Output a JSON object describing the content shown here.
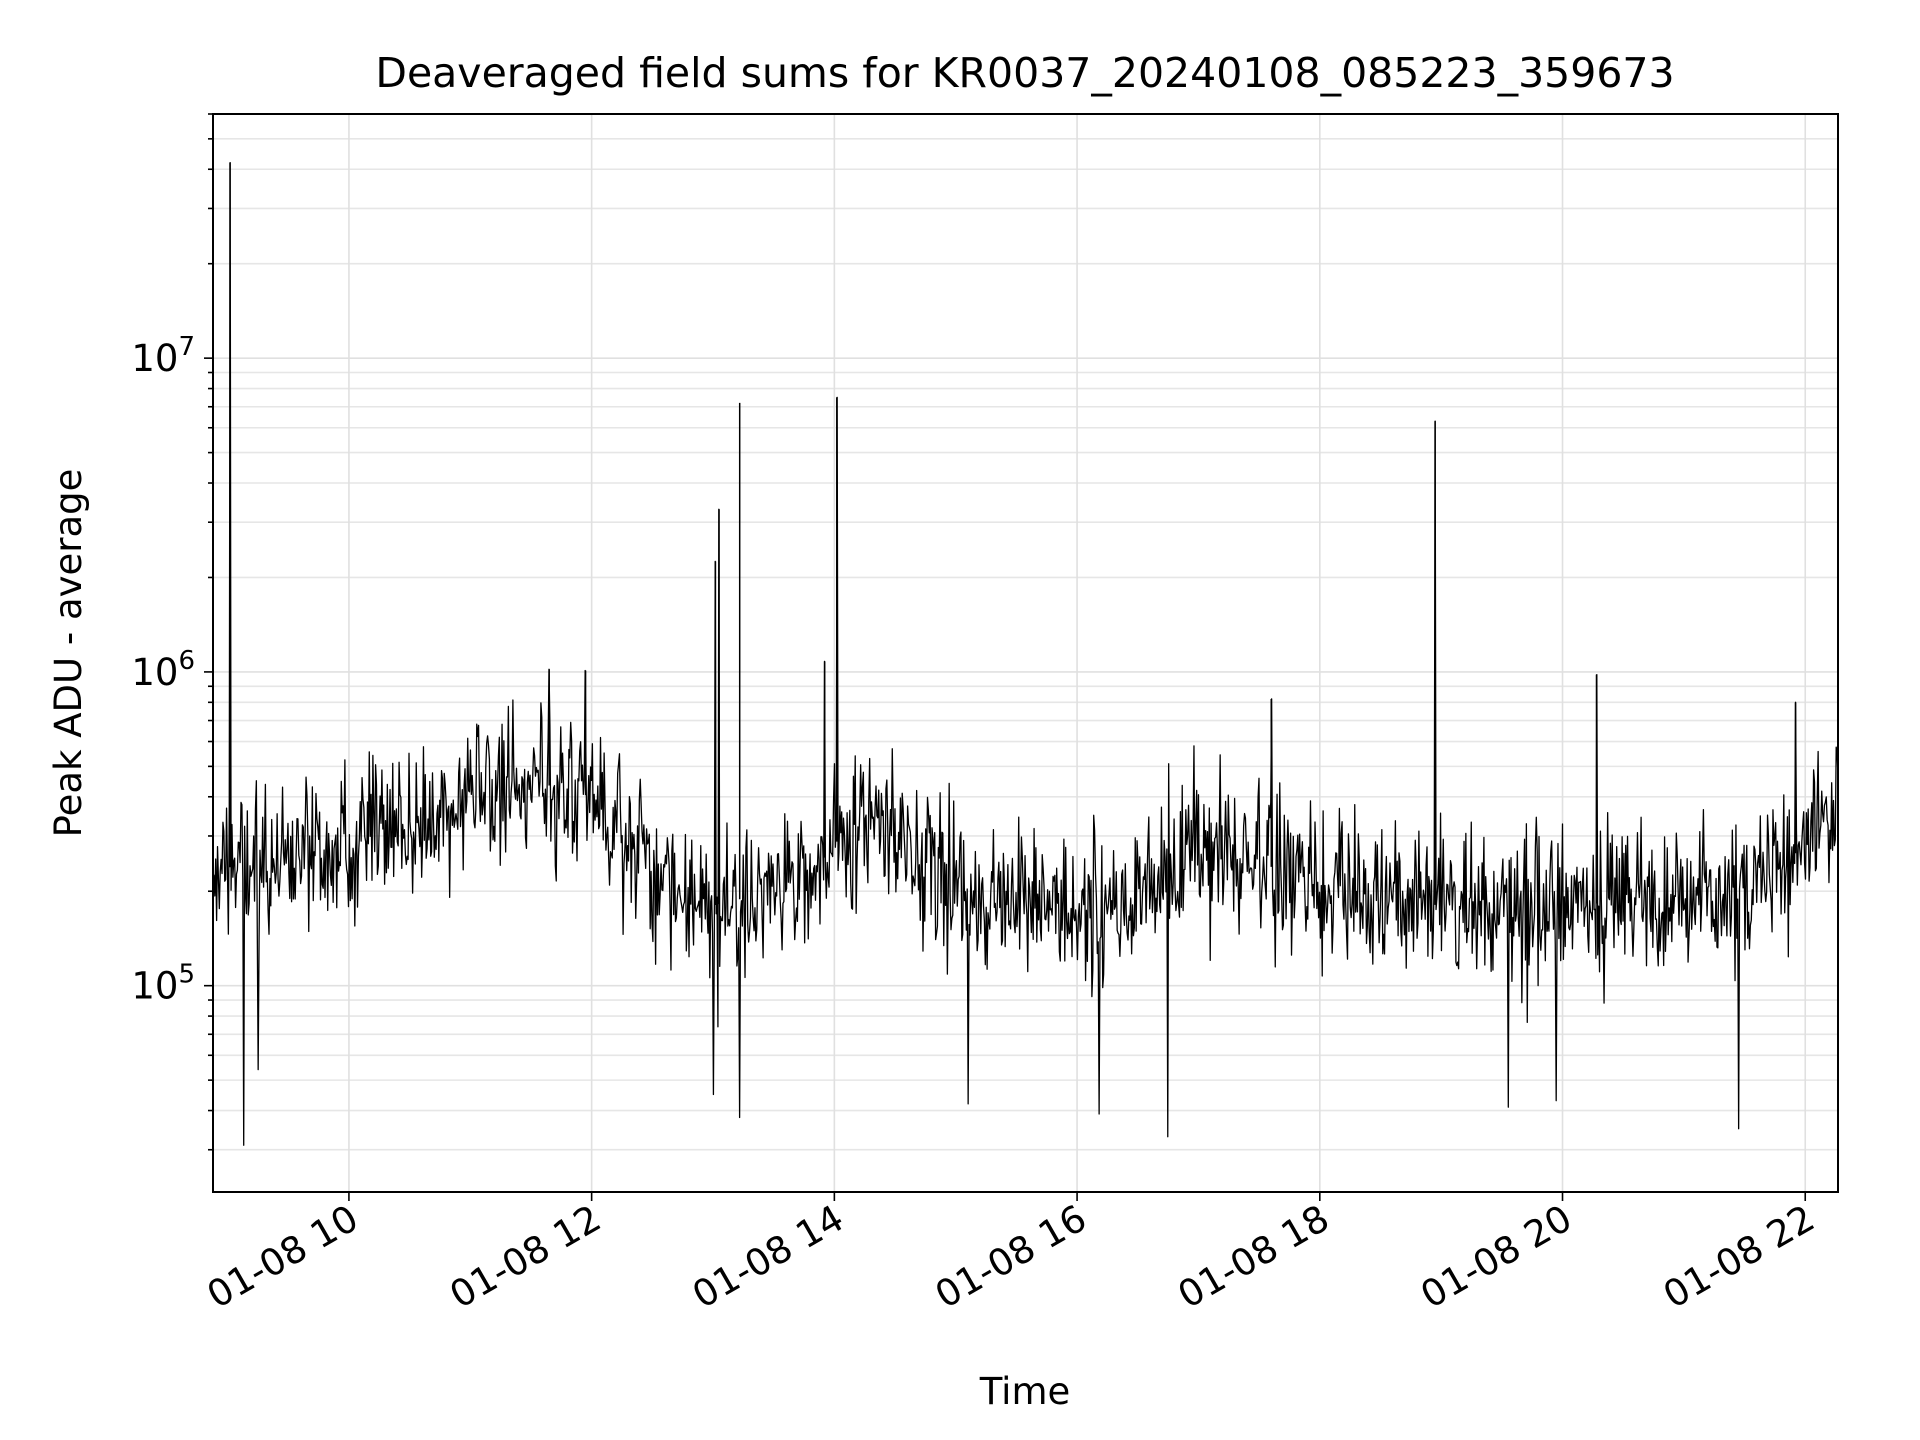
{
  "chart_data": {
    "type": "line",
    "title": "Deaveraged field sums for KR0037_20240108_085223_359673",
    "xlabel": "Time",
    "ylabel": "Peak ADU - average",
    "yscale": "log",
    "ylim": [
      22000,
      60000000
    ],
    "xlim_hours": [
      8.88,
      22.27
    ],
    "x_ticks": [
      {
        "hour": 10,
        "label": "01-08 10"
      },
      {
        "hour": 12,
        "label": "01-08 12"
      },
      {
        "hour": 14,
        "label": "01-08 14"
      },
      {
        "hour": 16,
        "label": "01-08 16"
      },
      {
        "hour": 18,
        "label": "01-08 18"
      },
      {
        "hour": 20,
        "label": "01-08 20"
      },
      {
        "hour": 22,
        "label": "01-08 22"
      }
    ],
    "y_ticks": [
      {
        "value": 100000,
        "base": "10",
        "exp": "5"
      },
      {
        "value": 1000000,
        "base": "10",
        "exp": "6"
      },
      {
        "value": 10000000,
        "base": "10",
        "exp": "7"
      }
    ],
    "grid": true,
    "series_color": "#000000",
    "baseline_profile": {
      "hours": [
        8.88,
        9.5,
        10.0,
        10.5,
        11.0,
        11.5,
        12.0,
        12.5,
        13.0,
        13.5,
        13.9,
        14.3,
        14.7,
        15.0,
        15.5,
        16.0,
        16.5,
        17.0,
        17.5,
        18.0,
        18.5,
        19.0,
        19.5,
        20.0,
        20.5,
        21.0,
        21.5,
        21.9,
        22.27
      ],
      "values": [
        230000,
        270000,
        300000,
        320000,
        380000,
        450000,
        400000,
        220000,
        180000,
        200000,
        250000,
        400000,
        260000,
        190000,
        180000,
        170000,
        190000,
        280000,
        250000,
        200000,
        190000,
        180000,
        170000,
        180000,
        185000,
        190000,
        200000,
        260000,
        350000
      ]
    },
    "noise_decades": 0.17,
    "sample_count": 1800,
    "spikes": [
      {
        "hour": 9.02,
        "value": 42000000
      },
      {
        "hour": 13.02,
        "value": 2250000
      },
      {
        "hour": 13.05,
        "value": 3300000
      },
      {
        "hour": 13.22,
        "value": 7200000
      },
      {
        "hour": 14.02,
        "value": 7500000
      },
      {
        "hour": 13.92,
        "value": 1080000
      },
      {
        "hour": 18.95,
        "value": 6300000
      },
      {
        "hour": 20.28,
        "value": 980000
      },
      {
        "hour": 11.65,
        "value": 1020000
      },
      {
        "hour": 11.95,
        "value": 1010000
      },
      {
        "hour": 17.6,
        "value": 820000
      },
      {
        "hour": 21.92,
        "value": 800000
      }
    ],
    "dips": [
      {
        "hour": 9.13,
        "value": 31000
      },
      {
        "hour": 13.22,
        "value": 38000
      },
      {
        "hour": 16.75,
        "value": 33000
      },
      {
        "hour": 21.45,
        "value": 35000
      },
      {
        "hour": 15.1,
        "value": 42000
      },
      {
        "hour": 16.18,
        "value": 39000
      },
      {
        "hour": 19.55,
        "value": 41000
      },
      {
        "hour": 9.25,
        "value": 54000
      },
      {
        "hour": 13.0,
        "value": 45000
      },
      {
        "hour": 19.95,
        "value": 43000
      }
    ]
  }
}
